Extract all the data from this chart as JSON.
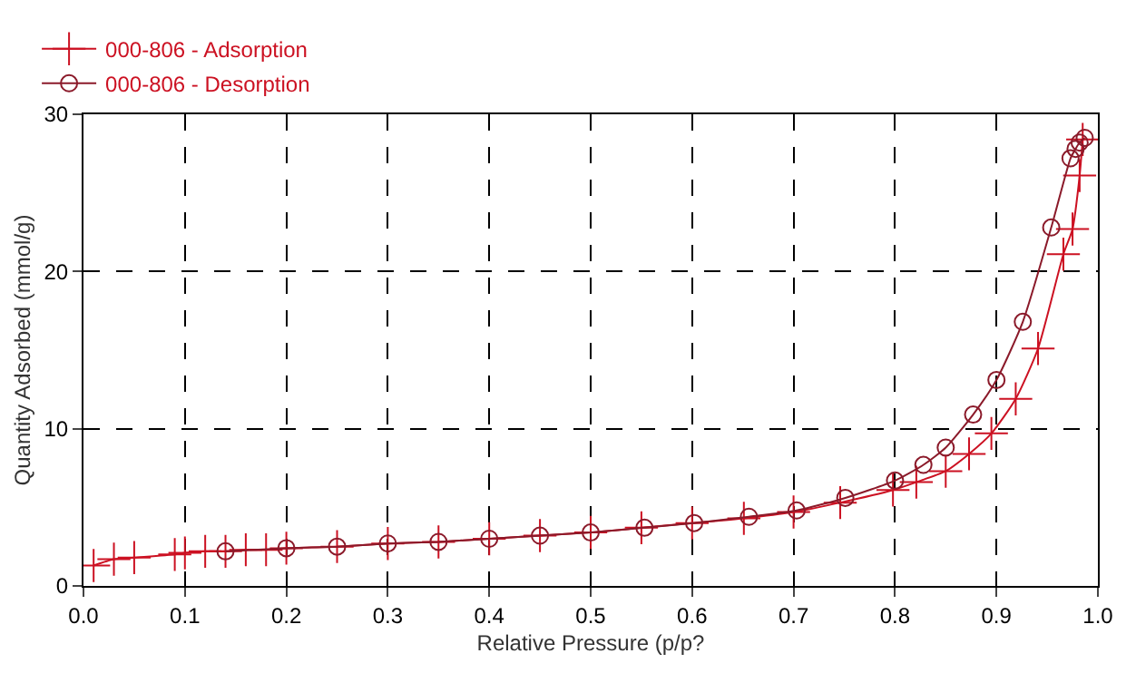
{
  "chart_data": {
    "type": "line",
    "xlabel": "Relative Pressure (p/p?",
    "ylabel": "Quantity Adsorbed (mmol/g)",
    "xlim": [
      0,
      1.0
    ],
    "xticks": [
      {
        "value": 0,
        "label": "0.0"
      },
      0.1,
      0.2,
      0.3,
      0.4,
      0.5,
      0.6,
      0.7,
      0.8,
      0.9,
      {
        "value": 1.0,
        "label": "1.0"
      }
    ],
    "ylim": [
      0,
      30
    ],
    "yticks": [
      0,
      10,
      20,
      30
    ],
    "grid": true,
    "legend": "top left",
    "line_style": "solid",
    "series": [
      {
        "name": "000-806 - Adsorption",
        "color": "#cc1122",
        "marker": "cross",
        "x": [
          0.01,
          0.03,
          0.05,
          0.09,
          0.1,
          0.12,
          0.14,
          0.16,
          0.18,
          0.2,
          0.25,
          0.3,
          0.35,
          0.4,
          0.45,
          0.5,
          0.55,
          0.6,
          0.651,
          0.7,
          0.746,
          0.798,
          0.821,
          0.85,
          0.873,
          0.895,
          0.919,
          0.941,
          0.966,
          0.975,
          0.982,
          0.985
        ],
        "values": [
          1.3,
          1.7,
          1.8,
          2.0,
          2.1,
          2.2,
          2.2,
          2.3,
          2.3,
          2.4,
          2.5,
          2.7,
          2.8,
          3.0,
          3.2,
          3.4,
          3.7,
          4.0,
          4.3,
          4.7,
          5.3,
          6.1,
          6.6,
          7.3,
          8.4,
          9.7,
          11.9,
          15.1,
          21.1,
          22.7,
          26.1,
          28.4
        ]
      },
      {
        "name": "000-806 - Desorption",
        "color": "#8b1a2a",
        "marker": "circle",
        "x": [
          0.987,
          0.982,
          0.978,
          0.973,
          0.954,
          0.926,
          0.9,
          0.877,
          0.85,
          0.828,
          0.8,
          0.751,
          0.703,
          0.656,
          0.602,
          0.553,
          0.5,
          0.45,
          0.4,
          0.35,
          0.3,
          0.25,
          0.2,
          0.14
        ],
        "values": [
          28.5,
          28.2,
          27.8,
          27.2,
          22.8,
          16.8,
          13.1,
          10.9,
          8.8,
          7.7,
          6.7,
          5.6,
          4.8,
          4.4,
          4.0,
          3.7,
          3.4,
          3.2,
          3.0,
          2.8,
          2.7,
          2.5,
          2.4,
          2.2
        ]
      }
    ]
  }
}
